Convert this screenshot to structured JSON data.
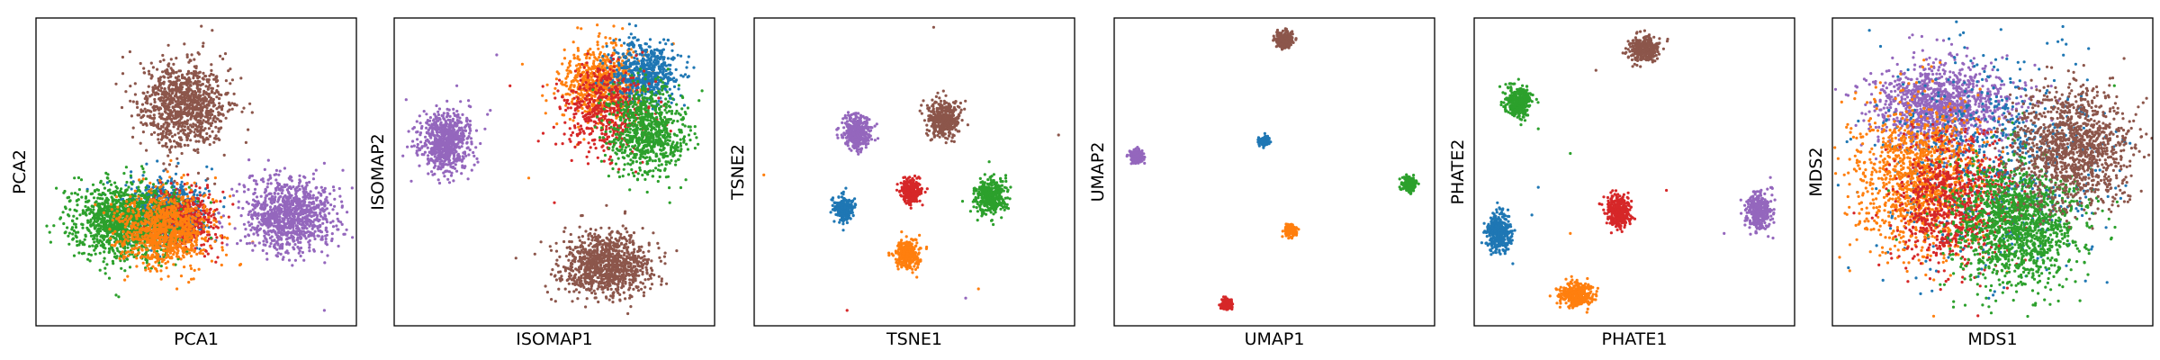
{
  "colors": {
    "blue": "#1f77b4",
    "orange": "#ff7f0e",
    "green": "#2ca02c",
    "red": "#d62728",
    "purple": "#9467bd",
    "brown": "#8c564b"
  },
  "chart_data": [
    {
      "type": "scatter",
      "xlabel": "PCA1",
      "ylabel": "PCA2",
      "grid": false,
      "ticks": false,
      "xlim": [
        0,
        100
      ],
      "ylim": [
        0,
        100
      ],
      "clusters": [
        {
          "color": "blue",
          "cx": 40,
          "cy": 37,
          "sx": 6,
          "sy": 5,
          "n": 700
        },
        {
          "color": "red",
          "cx": 46,
          "cy": 35,
          "sx": 5,
          "sy": 5,
          "n": 500
        },
        {
          "color": "green",
          "cx": 28,
          "cy": 34,
          "sx": 8,
          "sy": 6,
          "n": 1300
        },
        {
          "color": "orange",
          "cx": 40,
          "cy": 31,
          "sx": 7,
          "sy": 6,
          "n": 900
        },
        {
          "color": "purple",
          "cx": 79,
          "cy": 36,
          "sx": 7,
          "sy": 6,
          "n": 1000
        },
        {
          "color": "brown",
          "cx": 46,
          "cy": 72,
          "sx": 7,
          "sy": 7,
          "n": 1000
        }
      ],
      "outliers": [
        {
          "color": "brown",
          "x": 55,
          "y": 96
        },
        {
          "color": "purple",
          "x": 90,
          "y": 5
        },
        {
          "color": "green",
          "x": 12,
          "y": 48
        },
        {
          "color": "orange",
          "x": 44,
          "y": 12
        },
        {
          "color": "purple",
          "x": 93,
          "y": 44
        }
      ]
    },
    {
      "type": "scatter",
      "xlabel": "ISOMAP1",
      "ylabel": "ISOMAP2",
      "grid": false,
      "ticks": false,
      "xlim": [
        0,
        100
      ],
      "ylim": [
        0,
        100
      ],
      "clusters": [
        {
          "color": "purple",
          "cx": 16,
          "cy": 60,
          "sx": 4,
          "sy": 5,
          "n": 700
        },
        {
          "color": "orange",
          "cx": 64,
          "cy": 79,
          "sx": 6,
          "sy": 6,
          "n": 700
        },
        {
          "color": "blue",
          "cx": 78,
          "cy": 82,
          "sx": 5,
          "sy": 5,
          "n": 600
        },
        {
          "color": "red",
          "cx": 66,
          "cy": 70,
          "sx": 7,
          "sy": 7,
          "n": 500
        },
        {
          "color": "green",
          "cx": 79,
          "cy": 63,
          "sx": 6,
          "sy": 7,
          "n": 800
        },
        {
          "color": "brown",
          "cx": 66,
          "cy": 20,
          "sx": 7,
          "sy": 5,
          "n": 1000
        }
      ],
      "outliers": [
        {
          "color": "orange",
          "x": 40,
          "y": 85
        },
        {
          "color": "red",
          "x": 45,
          "y": 60
        },
        {
          "color": "purple",
          "x": 30,
          "y": 70
        },
        {
          "color": "brown",
          "x": 38,
          "y": 22
        },
        {
          "color": "red",
          "x": 50,
          "y": 40
        },
        {
          "color": "orange",
          "x": 42,
          "y": 48
        },
        {
          "color": "purple",
          "x": 32,
          "y": 88
        },
        {
          "color": "green",
          "x": 86,
          "y": 40
        }
      ]
    },
    {
      "type": "scatter",
      "xlabel": "TSNE1",
      "ylabel": "TSNE2",
      "grid": false,
      "ticks": false,
      "xlim": [
        0,
        100
      ],
      "ylim": [
        0,
        100
      ],
      "clusters": [
        {
          "color": "purple",
          "cx": 32,
          "cy": 63,
          "sx": 2.2,
          "sy": 2.8,
          "n": 400
        },
        {
          "color": "brown",
          "cx": 59,
          "cy": 67,
          "sx": 2.5,
          "sy": 3,
          "n": 400
        },
        {
          "color": "blue",
          "cx": 28,
          "cy": 38,
          "sx": 1.5,
          "sy": 1.8,
          "n": 300
        },
        {
          "color": "red",
          "cx": 49,
          "cy": 44,
          "sx": 1.6,
          "sy": 2,
          "n": 300
        },
        {
          "color": "green",
          "cx": 74,
          "cy": 42,
          "sx": 2.3,
          "sy": 2.8,
          "n": 400
        },
        {
          "color": "orange",
          "cx": 48,
          "cy": 23,
          "sx": 1.9,
          "sy": 2.3,
          "n": 300
        }
      ],
      "outliers": [
        {
          "color": "brown",
          "x": 56,
          "y": 97
        },
        {
          "color": "orange",
          "x": 3,
          "y": 49
        },
        {
          "color": "red",
          "x": 29,
          "y": 5
        },
        {
          "color": "orange",
          "x": 70,
          "y": 12
        },
        {
          "color": "purple",
          "x": 66,
          "y": 9
        },
        {
          "color": "brown",
          "x": 95,
          "y": 62
        }
      ]
    },
    {
      "type": "scatter",
      "xlabel": "UMAP1",
      "ylabel": "UMAP2",
      "grid": false,
      "ticks": false,
      "xlim": [
        0,
        100
      ],
      "ylim": [
        0,
        100
      ],
      "clusters": [
        {
          "color": "brown",
          "cx": 53,
          "cy": 93,
          "sx": 1.3,
          "sy": 1.3,
          "n": 250
        },
        {
          "color": "purple",
          "cx": 7,
          "cy": 55,
          "sx": 1.0,
          "sy": 1.1,
          "n": 250
        },
        {
          "color": "blue",
          "cx": 47,
          "cy": 60,
          "sx": 0.8,
          "sy": 0.8,
          "n": 150
        },
        {
          "color": "green",
          "cx": 92,
          "cy": 46,
          "sx": 1.0,
          "sy": 1.1,
          "n": 250
        },
        {
          "color": "orange",
          "cx": 55,
          "cy": 31,
          "sx": 0.9,
          "sy": 0.9,
          "n": 200
        },
        {
          "color": "red",
          "cx": 35,
          "cy": 7,
          "sx": 0.9,
          "sy": 0.9,
          "n": 200
        }
      ],
      "outliers": []
    },
    {
      "type": "scatter",
      "xlabel": "PHATE1",
      "ylabel": "PHATE2",
      "grid": false,
      "ticks": false,
      "xlim": [
        0,
        100
      ],
      "ylim": [
        0,
        100
      ],
      "clusters": [
        {
          "color": "brown",
          "cx": 53,
          "cy": 90,
          "sx": 2.5,
          "sy": 2,
          "n": 350
        },
        {
          "color": "green",
          "cx": 14,
          "cy": 73,
          "sx": 2,
          "sy": 2.5,
          "n": 350
        },
        {
          "color": "red",
          "cx": 45,
          "cy": 37,
          "sx": 2,
          "sy": 2.5,
          "n": 350
        },
        {
          "color": "purple",
          "cx": 89,
          "cy": 37,
          "sx": 2,
          "sy": 3,
          "n": 350
        },
        {
          "color": "blue",
          "cx": 8,
          "cy": 30,
          "sx": 2,
          "sy": 3,
          "n": 350
        },
        {
          "color": "orange",
          "cx": 32,
          "cy": 10,
          "sx": 2.5,
          "sy": 2,
          "n": 350
        }
      ],
      "outliers": [
        {
          "color": "green",
          "x": 30,
          "y": 56
        },
        {
          "color": "brown",
          "x": 38,
          "y": 83
        },
        {
          "color": "purple",
          "x": 78,
          "y": 30
        },
        {
          "color": "blue",
          "x": 20,
          "y": 45
        },
        {
          "color": "orange",
          "x": 30,
          "y": 30
        },
        {
          "color": "red",
          "x": 60,
          "y": 44
        },
        {
          "color": "green",
          "x": 20,
          "y": 64
        },
        {
          "color": "blue",
          "x": 18,
          "y": 36
        }
      ]
    },
    {
      "type": "scatter",
      "xlabel": "MDS1",
      "ylabel": "MDS2",
      "grid": false,
      "ticks": false,
      "xlim": [
        0,
        100
      ],
      "ylim": [
        0,
        100
      ],
      "clusters": [
        {
          "color": "purple",
          "cx": 34,
          "cy": 72,
          "sx": 11,
          "sy": 7,
          "n": 1200
        },
        {
          "color": "blue",
          "cx": 50,
          "cy": 55,
          "sx": 18,
          "sy": 18,
          "n": 700
        },
        {
          "color": "orange",
          "cx": 27,
          "cy": 48,
          "sx": 10,
          "sy": 12,
          "n": 1200
        },
        {
          "color": "red",
          "cx": 38,
          "cy": 40,
          "sx": 9,
          "sy": 11,
          "n": 800
        },
        {
          "color": "green",
          "cx": 58,
          "cy": 33,
          "sx": 10,
          "sy": 10,
          "n": 1400
        },
        {
          "color": "brown",
          "cx": 75,
          "cy": 58,
          "sx": 9,
          "sy": 10,
          "n": 1200
        }
      ],
      "outliers": [
        {
          "color": "green",
          "x": 88,
          "y": 78
        },
        {
          "color": "purple",
          "x": 12,
          "y": 82
        },
        {
          "color": "red",
          "x": 52,
          "y": 26
        },
        {
          "color": "green",
          "x": 20,
          "y": 28
        },
        {
          "color": "blue",
          "x": 86,
          "y": 42
        }
      ]
    }
  ]
}
